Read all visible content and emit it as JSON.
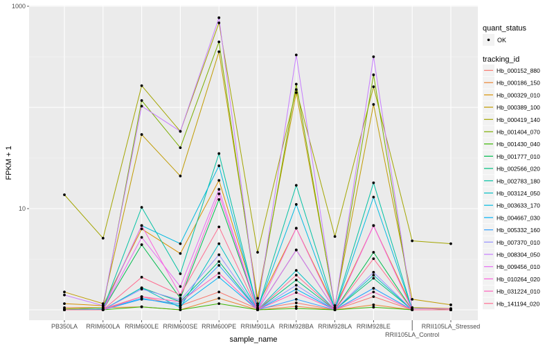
{
  "chart_data": {
    "type": "line",
    "xlabel": "sample_name",
    "ylabel": "FPKM + 1",
    "y_scale": "log10",
    "ylim": [
      0.8,
      1100
    ],
    "y_ticks": [
      {
        "value": 1000,
        "label": "1000"
      },
      {
        "value": 10,
        "label": "10"
      }
    ],
    "y_gridlines": [
      1,
      10,
      100,
      1000
    ],
    "grid": true,
    "background": "#EBEBEB",
    "point_color": "#000000",
    "legend_position": "right",
    "categories": [
      "PB350LA",
      "RRIM600LA",
      "RRIM600LE",
      "RRIM600SE",
      "RRIM600PE",
      "RRIM901LA",
      "RRIM928BA",
      "RRIM928LA",
      "RRIM928LE",
      "RRII105LA_Control",
      "RRII105LA_Stressed"
    ],
    "legend_shape": {
      "title": "quant_status",
      "entries": [
        "OK"
      ]
    },
    "legend_color_title": "tracking_id",
    "series": [
      {
        "name": "Hb_000152_880",
        "color": "#F8766D",
        "values": [
          1.0,
          1.02,
          1.35,
          1.1,
          1.5,
          1.02,
          1.17,
          1.0,
          1.35,
          1.0,
          1.0
        ]
      },
      {
        "name": "Hb_000186_150",
        "color": "#EA8331",
        "values": [
          1.05,
          1.05,
          1.07,
          1.0,
          1.3,
          1.0,
          1.08,
          1.0,
          1.12,
          1.0,
          1.0
        ]
      },
      {
        "name": "Hb_000329_010",
        "color": "#D89000",
        "values": [
          1.15,
          1.1,
          6.3,
          3.6,
          19,
          1.1,
          6.4,
          1.05,
          6.8,
          1.05,
          1.03
        ]
      },
      {
        "name": "Hb_000389_100",
        "color": "#C09B00",
        "values": [
          1.5,
          1.15,
          54,
          21,
          355,
          1.3,
          140,
          1.1,
          107,
          1.27,
          1.12
        ]
      },
      {
        "name": "Hb_000419_140",
        "color": "#A3A500",
        "values": [
          13.7,
          5.1,
          164,
          58,
          685,
          3.7,
          150,
          5.3,
          160,
          4.8,
          4.5
        ]
      },
      {
        "name": "Hb_001404_070",
        "color": "#7CAE00",
        "values": [
          1.02,
          1.05,
          117,
          40,
          445,
          1.15,
          170,
          1.05,
          210,
          1.05,
          1.0
        ]
      },
      {
        "name": "Hb_001430_040",
        "color": "#39B600",
        "values": [
          1.0,
          1.0,
          1.07,
          1.0,
          1.15,
          1.0,
          1.03,
          1.0,
          1.06,
          1.0,
          1.0
        ]
      },
      {
        "name": "Hb_001777_010",
        "color": "#00BB4E",
        "values": [
          1.0,
          1.0,
          4.4,
          1.3,
          12.3,
          1.0,
          3.9,
          1.0,
          3.7,
          1.0,
          1.0
        ]
      },
      {
        "name": "Hb_002566_020",
        "color": "#00BF7D",
        "values": [
          1.0,
          1.0,
          1.65,
          1.2,
          3.0,
          1.0,
          1.97,
          1.0,
          2.05,
          1.0,
          1.0
        ]
      },
      {
        "name": "Hb_002783_180",
        "color": "#00C1A3",
        "values": [
          1.0,
          1.02,
          10.3,
          2.27,
          35,
          1.02,
          17,
          1.02,
          18,
          1.0,
          1.0
        ]
      },
      {
        "name": "Hb_003124_050",
        "color": "#00BFC4",
        "values": [
          1.0,
          1.0,
          1.65,
          1.05,
          4.5,
          1.0,
          2.45,
          1.0,
          2.2,
          1.0,
          1.0
        ]
      },
      {
        "name": "Hb_003633_170",
        "color": "#00BAE0",
        "values": [
          1.0,
          1.02,
          6.8,
          4.5,
          26.5,
          1.02,
          11,
          1.0,
          13,
          1.0,
          1.0
        ]
      },
      {
        "name": "Hb_004667_030",
        "color": "#00B0F6",
        "values": [
          1.0,
          1.0,
          1.3,
          1.1,
          2.1,
          1.0,
          1.6,
          1.0,
          1.63,
          1.0,
          1.0
        ]
      },
      {
        "name": "Hb_005332_160",
        "color": "#35A2FF",
        "values": [
          1.0,
          1.0,
          1.27,
          1.15,
          2.75,
          1.0,
          1.27,
          1.0,
          1.63,
          1.0,
          1.0
        ]
      },
      {
        "name": "Hb_007370_010",
        "color": "#9590FF",
        "values": [
          1.0,
          1.0,
          1.6,
          1.25,
          3.5,
          1.0,
          1.75,
          1.0,
          2.35,
          1.0,
          1.0
        ]
      },
      {
        "name": "Hb_008304_050",
        "color": "#C77CFF",
        "values": [
          1.4,
          1.1,
          103,
          58,
          770,
          1.05,
          330,
          1.05,
          317,
          1.03,
          1.02
        ]
      },
      {
        "name": "Hb_009456_010",
        "color": "#E76BF3",
        "values": [
          1.0,
          1.0,
          5.2,
          1.7,
          15.5,
          1.0,
          3.9,
          1.0,
          6.8,
          1.0,
          1.0
        ]
      },
      {
        "name": "Hb_010264_020",
        "color": "#FA62DB",
        "values": [
          1.0,
          1.0,
          6.8,
          1.4,
          14,
          1.0,
          6.4,
          1.0,
          6.8,
          1.0,
          1.0
        ]
      },
      {
        "name": "Hb_031224_010",
        "color": "#FF62BC",
        "values": [
          1.0,
          1.0,
          1.35,
          1.2,
          2.3,
          1.0,
          1.48,
          1.0,
          1.5,
          1.0,
          1.0
        ]
      },
      {
        "name": "Hb_141194_020",
        "color": "#FF6C90",
        "values": [
          1.0,
          1.0,
          2.1,
          1.4,
          6.6,
          1.0,
          2.2,
          1.0,
          3.2,
          1.0,
          1.0
        ]
      }
    ]
  }
}
